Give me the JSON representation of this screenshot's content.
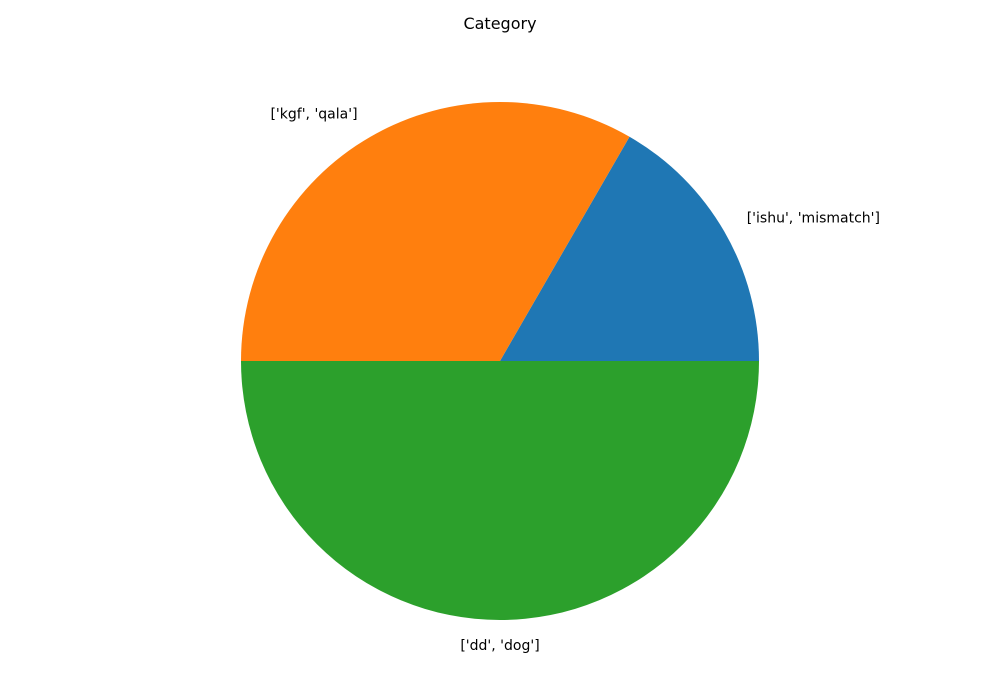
{
  "chart_data": {
    "type": "pie",
    "title": "Category",
    "start_angle_deg": 0,
    "direction": "counterclockwise",
    "slices": [
      {
        "label": "['ishu', 'mismatch']",
        "value": 1,
        "color": "#1f77b4"
      },
      {
        "label": "['kgf', 'qala']",
        "value": 2,
        "color": "#ff7f0e"
      },
      {
        "label": "['dd', 'dog']",
        "value": 3,
        "color": "#2ca02c"
      }
    ]
  }
}
